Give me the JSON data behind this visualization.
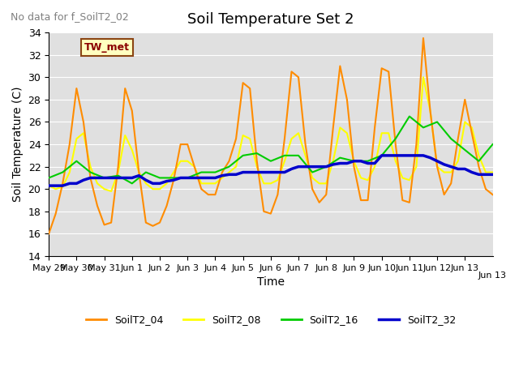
{
  "title": "Soil Temperature Set 2",
  "title_fontsize": 13,
  "xlabel": "Time",
  "ylabel": "Soil Temperature (C)",
  "no_data_text": "No data for f_SoilT2_02",
  "tw_met_label": "TW_met",
  "ylim": [
    14,
    34
  ],
  "yticks": [
    14,
    16,
    18,
    20,
    22,
    24,
    26,
    28,
    30,
    32,
    34
  ],
  "bg_color": "#e0e0e0",
  "legend_entries": [
    "SoilT2_04",
    "SoilT2_08",
    "SoilT2_16",
    "SoilT2_32"
  ],
  "colors": {
    "SoilT2_04": "#ff8c00",
    "SoilT2_08": "#ffff00",
    "SoilT2_16": "#00cc00",
    "SoilT2_32": "#0000cc"
  },
  "line_widths": {
    "SoilT2_04": 1.5,
    "SoilT2_08": 1.5,
    "SoilT2_16": 1.5,
    "SoilT2_32": 2.5
  },
  "SoilT2_04_x": [
    0,
    0.25,
    0.5,
    0.75,
    1.0,
    1.25,
    1.5,
    1.75,
    2.0,
    2.25,
    2.5,
    2.75,
    3.0,
    3.25,
    3.5,
    3.75,
    4.0,
    4.25,
    4.5,
    4.75,
    5.0,
    5.25,
    5.5,
    5.75,
    6.0,
    6.25,
    6.5,
    6.75,
    7.0,
    7.25,
    7.5,
    7.75,
    8.0,
    8.25,
    8.5,
    8.75,
    9.0,
    9.25,
    9.5,
    9.75,
    10.0,
    10.25,
    10.5,
    10.75,
    11.0,
    11.25,
    11.5,
    11.75,
    12.0,
    12.25,
    12.5,
    12.75,
    13.0,
    13.25,
    13.5,
    13.75,
    14.0,
    14.25,
    14.5,
    14.75,
    15.0,
    15.25,
    15.5,
    15.75,
    16.0
  ],
  "SoilT2_04_y": [
    16.0,
    17.8,
    20.5,
    24.0,
    29.0,
    26.0,
    21.0,
    18.5,
    16.8,
    17.0,
    22.0,
    29.0,
    27.0,
    21.5,
    17.0,
    16.7,
    17.0,
    18.5,
    20.8,
    24.0,
    24.0,
    22.0,
    20.0,
    19.5,
    19.5,
    21.5,
    22.5,
    24.5,
    29.5,
    29.0,
    22.5,
    18.0,
    17.8,
    19.5,
    24.5,
    30.5,
    30.0,
    24.0,
    20.0,
    18.8,
    19.5,
    25.5,
    31.0,
    28.0,
    22.0,
    19.0,
    19.0,
    25.5,
    30.8,
    30.5,
    24.0,
    19.0,
    18.8,
    24.0,
    33.5,
    27.0,
    22.0,
    19.5,
    20.5,
    24.5,
    28.0,
    25.0,
    22.0,
    20.0,
    19.5
  ],
  "SoilT2_08_x": [
    0,
    0.25,
    0.5,
    0.75,
    1.0,
    1.25,
    1.5,
    1.75,
    2.0,
    2.25,
    2.5,
    2.75,
    3.0,
    3.25,
    3.5,
    3.75,
    4.0,
    4.25,
    4.5,
    4.75,
    5.0,
    5.25,
    5.5,
    5.75,
    6.0,
    6.25,
    6.5,
    6.75,
    7.0,
    7.25,
    7.5,
    7.75,
    8.0,
    8.25,
    8.5,
    8.75,
    9.0,
    9.25,
    9.5,
    9.75,
    10.0,
    10.25,
    10.5,
    10.75,
    11.0,
    11.25,
    11.5,
    11.75,
    12.0,
    12.25,
    12.5,
    12.75,
    13.0,
    13.25,
    13.5,
    13.75,
    14.0,
    14.25,
    14.5,
    14.75,
    15.0,
    15.25,
    15.5,
    15.75,
    16.0
  ],
  "SoilT2_08_y": [
    20.3,
    20.0,
    20.2,
    21.5,
    24.5,
    25.0,
    22.0,
    20.5,
    20.0,
    19.8,
    21.5,
    24.8,
    23.5,
    21.5,
    20.5,
    20.0,
    20.0,
    20.5,
    21.5,
    22.5,
    22.5,
    22.0,
    20.5,
    20.5,
    20.5,
    21.0,
    21.5,
    22.0,
    24.8,
    24.5,
    22.0,
    20.5,
    20.5,
    20.8,
    22.5,
    24.5,
    25.0,
    23.0,
    21.0,
    20.5,
    20.5,
    22.5,
    25.5,
    25.0,
    22.5,
    21.0,
    20.8,
    22.0,
    25.0,
    25.0,
    22.5,
    21.0,
    20.8,
    22.0,
    30.0,
    27.0,
    22.0,
    21.5,
    21.5,
    22.5,
    26.0,
    25.5,
    23.0,
    21.5,
    21.5
  ],
  "SoilT2_16_x": [
    0,
    0.5,
    1.0,
    1.5,
    2.0,
    2.5,
    3.0,
    3.5,
    4.0,
    4.5,
    5.0,
    5.5,
    6.0,
    6.5,
    7.0,
    7.5,
    8.0,
    8.5,
    9.0,
    9.5,
    10.0,
    10.5,
    11.0,
    11.5,
    12.0,
    12.5,
    13.0,
    13.5,
    14.0,
    14.5,
    15.0,
    15.5,
    16.0
  ],
  "SoilT2_16_y": [
    21.0,
    21.5,
    22.5,
    21.5,
    21.0,
    21.2,
    20.5,
    21.5,
    21.0,
    21.0,
    21.0,
    21.5,
    21.5,
    22.0,
    23.0,
    23.2,
    22.5,
    23.0,
    23.0,
    21.5,
    22.0,
    22.8,
    22.5,
    22.5,
    23.0,
    24.5,
    26.5,
    25.5,
    26.0,
    24.5,
    23.5,
    22.5,
    24.0
  ],
  "SoilT2_32_x": [
    0,
    0.25,
    0.5,
    0.75,
    1.0,
    1.25,
    1.5,
    1.75,
    2.0,
    2.25,
    2.5,
    2.75,
    3.0,
    3.25,
    3.5,
    3.75,
    4.0,
    4.25,
    4.5,
    4.75,
    5.0,
    5.25,
    5.5,
    5.75,
    6.0,
    6.25,
    6.5,
    6.75,
    7.0,
    7.25,
    7.5,
    7.75,
    8.0,
    8.25,
    8.5,
    8.75,
    9.0,
    9.25,
    9.5,
    9.75,
    10.0,
    10.25,
    10.5,
    10.75,
    11.0,
    11.25,
    11.5,
    11.75,
    12.0,
    12.25,
    12.5,
    12.75,
    13.0,
    13.25,
    13.5,
    13.75,
    14.0,
    14.25,
    14.5,
    14.75,
    15.0,
    15.25,
    15.5,
    15.75,
    16.0
  ],
  "SoilT2_32_y": [
    20.3,
    20.3,
    20.3,
    20.5,
    20.5,
    20.8,
    21.0,
    21.0,
    21.0,
    21.0,
    21.0,
    21.0,
    21.0,
    21.2,
    20.8,
    20.5,
    20.5,
    20.7,
    20.8,
    21.0,
    21.0,
    21.0,
    21.0,
    21.0,
    21.0,
    21.2,
    21.3,
    21.3,
    21.5,
    21.5,
    21.5,
    21.5,
    21.5,
    21.5,
    21.5,
    21.8,
    22.0,
    22.0,
    22.0,
    22.0,
    22.0,
    22.2,
    22.3,
    22.3,
    22.5,
    22.5,
    22.3,
    22.3,
    23.0,
    23.0,
    23.0,
    23.0,
    23.0,
    23.0,
    23.0,
    22.8,
    22.5,
    22.2,
    22.0,
    21.8,
    21.8,
    21.5,
    21.3,
    21.3,
    21.3
  ],
  "xtick_labels": [
    "May 29",
    "May 30",
    "May 31",
    "Jun 1",
    "Jun 2",
    "Jun 3",
    "Jun 4",
    "Jun 5",
    "Jun 6",
    "Jun 7",
    "Jun 8",
    "Jun 9",
    "Jun 10",
    "Jun 11",
    "Jun 12",
    "Jun 13"
  ],
  "xtick_positions": [
    0,
    1,
    2,
    3,
    4,
    5,
    6,
    7,
    8,
    9,
    10,
    11,
    12,
    13,
    14,
    15
  ]
}
